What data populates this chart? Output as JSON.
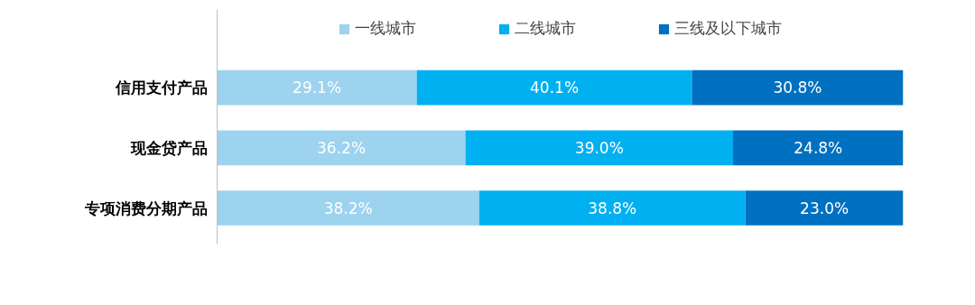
{
  "chart_data": {
    "type": "bar",
    "orientation": "horizontal",
    "stacked": true,
    "categories": [
      "信用支付产品",
      "现金贷产品",
      "专项消费分期产品"
    ],
    "xlim": [
      0,
      100
    ],
    "series": [
      {
        "name": "一线城市",
        "color": "#9dd3ef",
        "values": [
          29.1,
          36.2,
          38.2
        ],
        "value_labels": [
          "29.1%",
          "36.2%",
          "38.2%"
        ]
      },
      {
        "name": "二线城市",
        "color": "#00b0f0",
        "values": [
          40.1,
          39.0,
          38.8
        ],
        "value_labels": [
          "40.1%",
          "39.0%",
          "38.8%"
        ]
      },
      {
        "name": "三线及以下城市",
        "color": "#0070c0",
        "values": [
          30.8,
          24.8,
          23.0
        ],
        "value_labels": [
          "30.8%",
          "24.8%",
          "23.0%"
        ]
      }
    ],
    "legend": "top",
    "grid": false,
    "tick_labels": "y"
  }
}
